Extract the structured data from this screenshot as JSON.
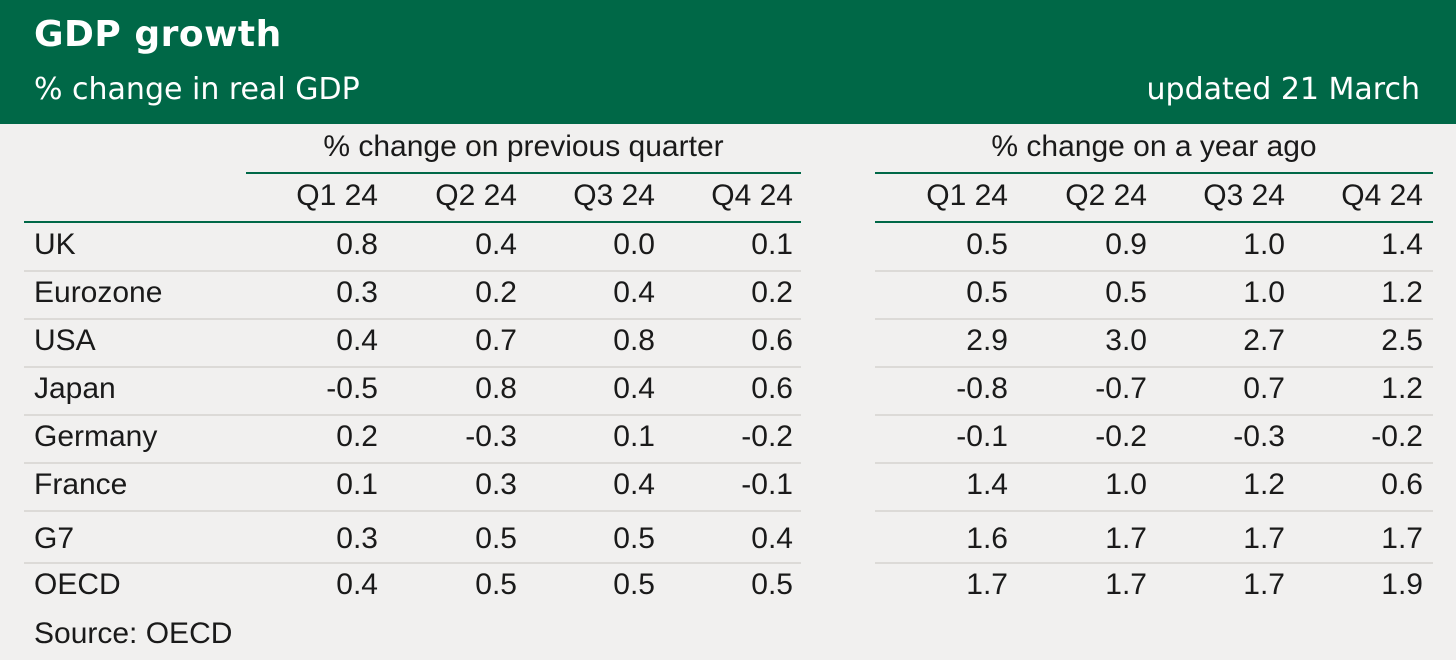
{
  "header": {
    "title": "GDP growth",
    "subtitle": "% change in real GDP",
    "updated": "updated 21 March"
  },
  "chart_data": {
    "type": "table",
    "title": "GDP growth",
    "subtitle": "% change in real GDP",
    "column_groups": [
      {
        "label": "% change on previous quarter",
        "columns": [
          "Q1 24",
          "Q2 24",
          "Q3 24",
          "Q4 24"
        ]
      },
      {
        "label": "% change on a year ago",
        "columns": [
          "Q1 24",
          "Q2 24",
          "Q3 24",
          "Q4 24"
        ]
      }
    ],
    "rows": [
      {
        "label": "UK",
        "qoq": [
          "0.8",
          "0.4",
          "0.0",
          "0.1"
        ],
        "yoy": [
          "0.5",
          "0.9",
          "1.0",
          "1.4"
        ]
      },
      {
        "label": "Eurozone",
        "qoq": [
          "0.3",
          "0.2",
          "0.4",
          "0.2"
        ],
        "yoy": [
          "0.5",
          "0.5",
          "1.0",
          "1.2"
        ]
      },
      {
        "label": "USA",
        "qoq": [
          "0.4",
          "0.7",
          "0.8",
          "0.6"
        ],
        "yoy": [
          "2.9",
          "3.0",
          "2.7",
          "2.5"
        ]
      },
      {
        "label": "Japan",
        "qoq": [
          "-0.5",
          "0.8",
          "0.4",
          "0.6"
        ],
        "yoy": [
          "-0.8",
          "-0.7",
          "0.7",
          "1.2"
        ]
      },
      {
        "label": "Germany",
        "qoq": [
          "0.2",
          "-0.3",
          "0.1",
          "-0.2"
        ],
        "yoy": [
          "-0.1",
          "-0.2",
          "-0.3",
          "-0.2"
        ]
      },
      {
        "label": "France",
        "qoq": [
          "0.1",
          "0.3",
          "0.4",
          "-0.1"
        ],
        "yoy": [
          "1.4",
          "1.0",
          "1.2",
          "0.6"
        ]
      },
      {
        "label": "G7",
        "qoq": [
          "0.3",
          "0.5",
          "0.5",
          "0.4"
        ],
        "yoy": [
          "1.6",
          "1.7",
          "1.7",
          "1.7"
        ]
      },
      {
        "label": "OECD",
        "qoq": [
          "0.4",
          "0.5",
          "0.5",
          "0.5"
        ],
        "yoy": [
          "1.7",
          "1.7",
          "1.7",
          "1.9"
        ]
      }
    ]
  },
  "footer": {
    "source": "Source: OECD"
  },
  "colors": {
    "header_bg": "#006847",
    "header_text": "#ffffff",
    "page_bg": "#f1f0ef",
    "rule": "#006847",
    "row_divider": "#dcdad7"
  }
}
